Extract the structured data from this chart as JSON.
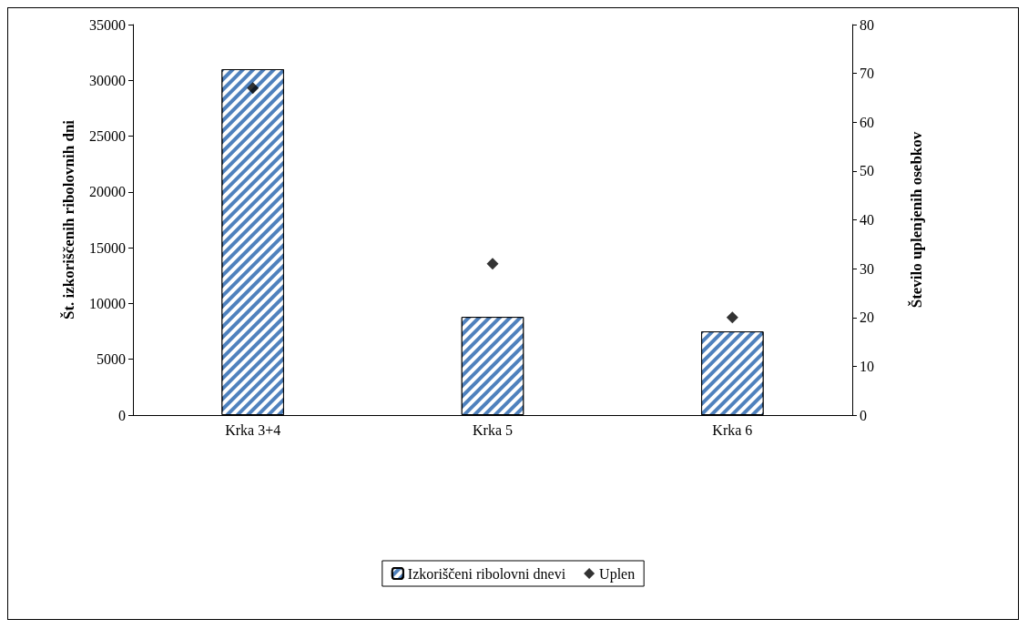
{
  "chart_data": {
    "type": "bar",
    "ylabel": "Št. izkoriščenih ribolovnih dni",
    "y2label": "Število uplenjenih osebkov",
    "categories": [
      "Krka 3+4",
      "Krka 5",
      "Krka 6"
    ],
    "series": [
      {
        "name": "Izkoriščeni ribolovni dnevi",
        "color": "#4f81bd",
        "values": [
          31000,
          8800,
          7500
        ]
      },
      {
        "name": "Uplen",
        "type": "scatter",
        "axis": "y2",
        "marker": "diamond",
        "color": "#000000",
        "values": [
          67,
          31,
          20
        ]
      }
    ],
    "ylim": [
      0,
      35000
    ],
    "yticks": [
      0,
      5000,
      10000,
      15000,
      20000,
      25000,
      30000,
      35000
    ],
    "y2lim": [
      0,
      80
    ],
    "y2ticks": [
      0,
      10,
      20,
      30,
      40,
      50,
      60,
      70,
      80
    ],
    "grid": false,
    "legend": "bottom"
  }
}
